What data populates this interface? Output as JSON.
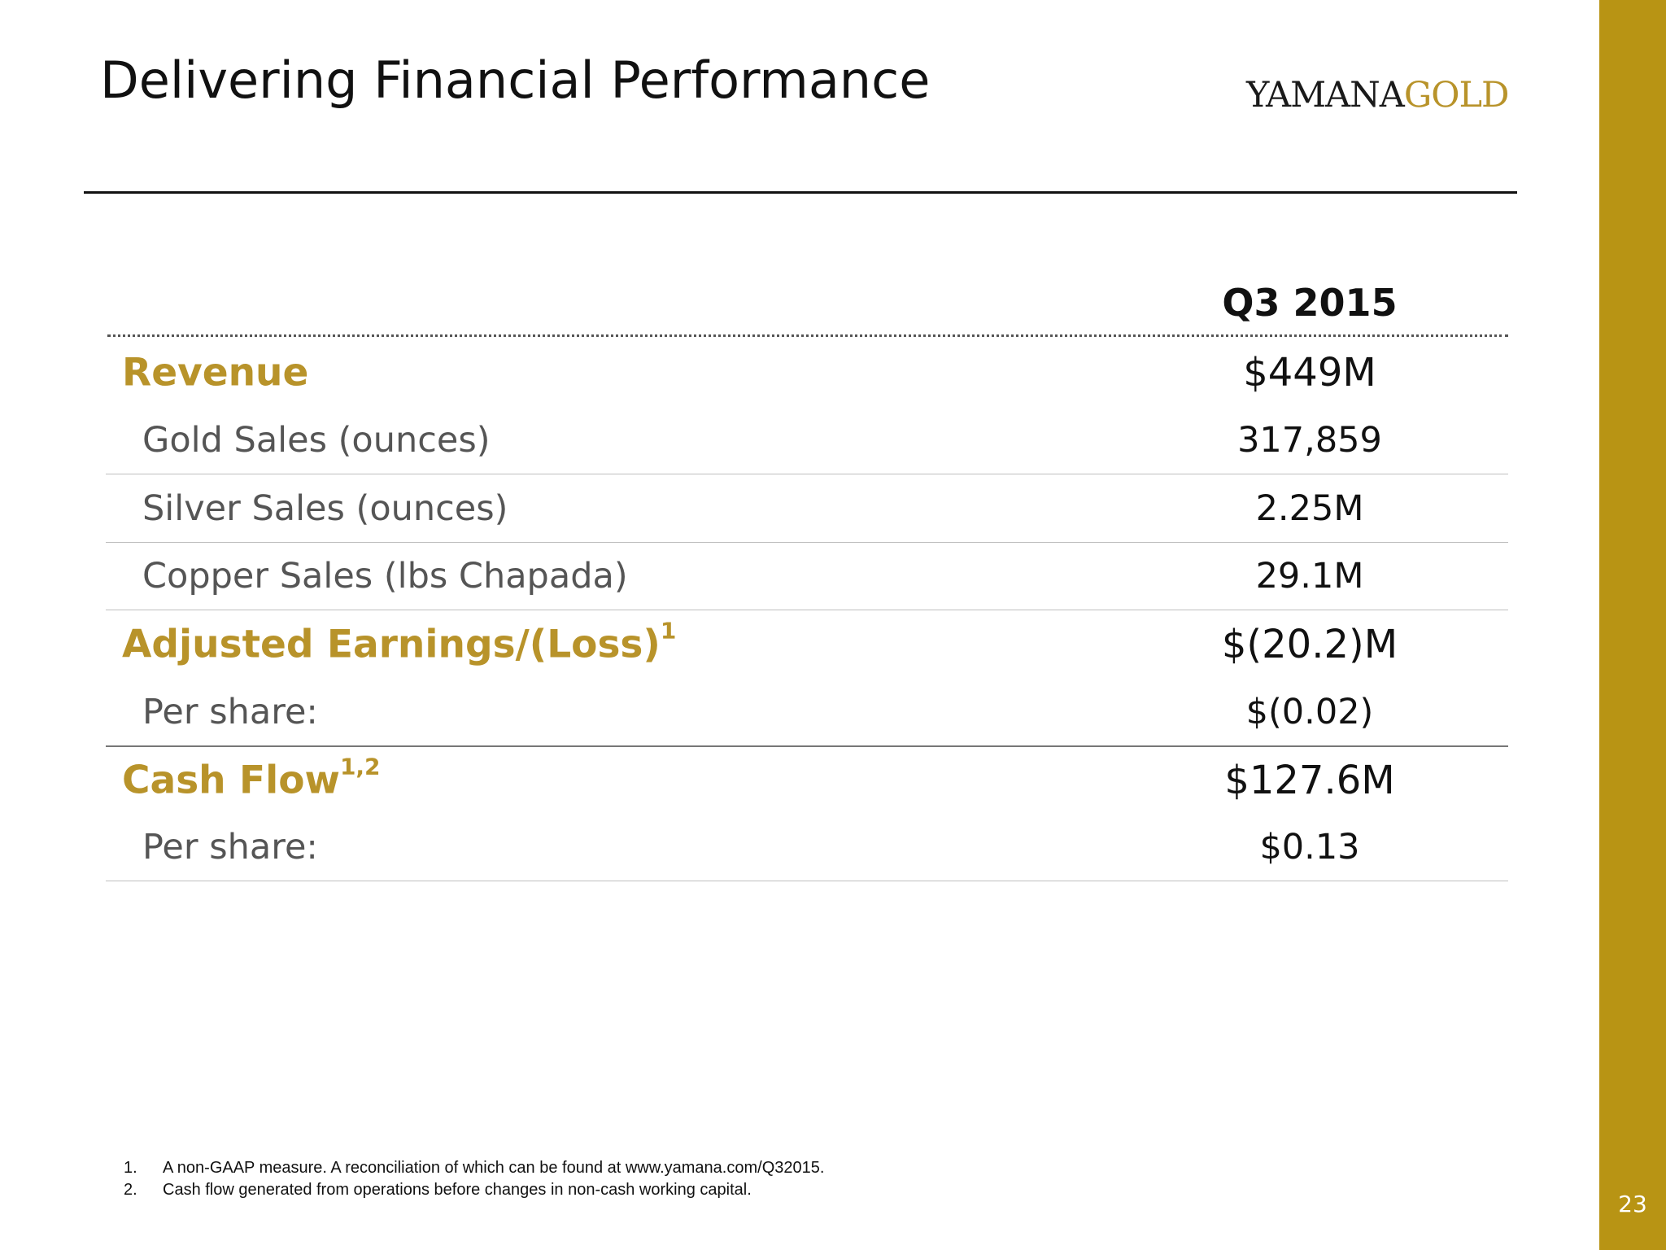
{
  "slide": {
    "title": "Delivering Financial Performance",
    "logo": {
      "part1": "YAMANA",
      "part2": "GOLD"
    },
    "page_number": "23"
  },
  "table": {
    "column_header": "Q3 2015",
    "rows": [
      {
        "label": "Revenue",
        "sup": "",
        "value": "$449M"
      },
      {
        "label": "Gold Sales (ounces)",
        "sup": "",
        "value": "317,859"
      },
      {
        "label": "Silver Sales (ounces)",
        "sup": "",
        "value": "2.25M"
      },
      {
        "label": "Copper Sales (lbs Chapada)",
        "sup": "",
        "value": "29.1M"
      },
      {
        "label": "Adjusted Earnings/(Loss)",
        "sup": "1",
        "value": "$(20.2)M"
      },
      {
        "label": "Per share:",
        "sup": "",
        "value": "$(0.02)"
      },
      {
        "label": "Cash Flow",
        "sup": "1,2",
        "value": "$127.6M"
      },
      {
        "label": "Per share:",
        "sup": "",
        "value": "$0.13"
      }
    ]
  },
  "footnotes": [
    {
      "num": "1.",
      "text": "A non-GAAP measure. A reconciliation of which can be found at www.yamana.com/Q32015."
    },
    {
      "num": "2.",
      "text": "Cash flow generated from operations before changes in non-cash working capital."
    }
  ],
  "colors": {
    "accent_gold": "#b8932a",
    "sidebar_gold": "#b89414",
    "text_dark": "#111111",
    "text_gray": "#555555"
  }
}
